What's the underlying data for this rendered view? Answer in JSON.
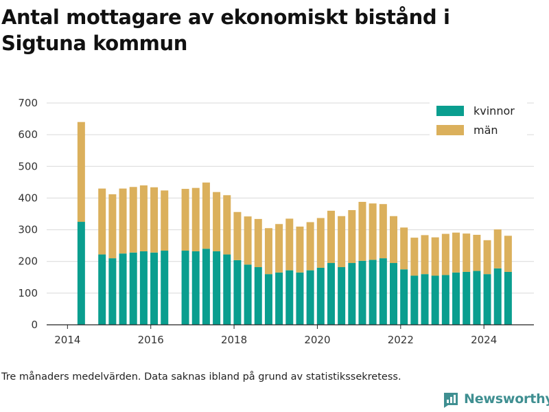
{
  "title": "Antal mottagare av ekonomiskt bistånd i Sigtuna kommun",
  "footnote": "Tre månaders medelvärden. Data saknas ibland på grund av statistikssekretess.",
  "brand": {
    "name": "Newsworthy",
    "icon": "newsworthy-logo-icon",
    "color": "#3f8f91"
  },
  "colors": {
    "kvinnor": "#0a9e8f",
    "man": "#dbb05c",
    "grid": "#d9d9d9"
  },
  "chart_data": {
    "type": "bar",
    "stacked": true,
    "x_unit": "year",
    "xlim": [
      2013.5,
      2025.2
    ],
    "ylim": [
      0,
      700
    ],
    "y_ticks": [
      0,
      100,
      200,
      300,
      400,
      500,
      600,
      700
    ],
    "x_ticks": [
      2014,
      2016,
      2018,
      2020,
      2022,
      2024
    ],
    "grid": true,
    "legend_position": "top-right",
    "x": [
      2014.33,
      2014.83,
      2015.08,
      2015.33,
      2015.58,
      2015.83,
      2016.08,
      2016.33,
      2016.83,
      2017.08,
      2017.33,
      2017.58,
      2017.83,
      2018.08,
      2018.33,
      2018.58,
      2018.83,
      2019.08,
      2019.33,
      2019.58,
      2019.83,
      2020.08,
      2020.33,
      2020.58,
      2020.83,
      2021.08,
      2021.33,
      2021.58,
      2021.83,
      2022.08,
      2022.33,
      2022.58,
      2022.83,
      2023.08,
      2023.33,
      2023.58,
      2023.83,
      2024.08,
      2024.33,
      2024.58
    ],
    "series": [
      {
        "name": "kvinnor",
        "values": [
          325,
          222,
          210,
          225,
          228,
          232,
          228,
          234,
          234,
          232,
          240,
          232,
          222,
          204,
          190,
          182,
          160,
          165,
          172,
          165,
          172,
          180,
          195,
          182,
          195,
          202,
          205,
          210,
          195,
          175,
          155,
          160,
          155,
          157,
          165,
          167,
          170,
          160,
          178,
          167
        ]
      },
      {
        "name": "män",
        "values": [
          315,
          208,
          202,
          205,
          207,
          208,
          206,
          190,
          195,
          200,
          209,
          187,
          187,
          152,
          152,
          152,
          145,
          153,
          163,
          145,
          152,
          157,
          165,
          161,
          167,
          186,
          178,
          171,
          148,
          132,
          120,
          123,
          121,
          130,
          126,
          121,
          114,
          107,
          123,
          114
        ]
      }
    ]
  }
}
